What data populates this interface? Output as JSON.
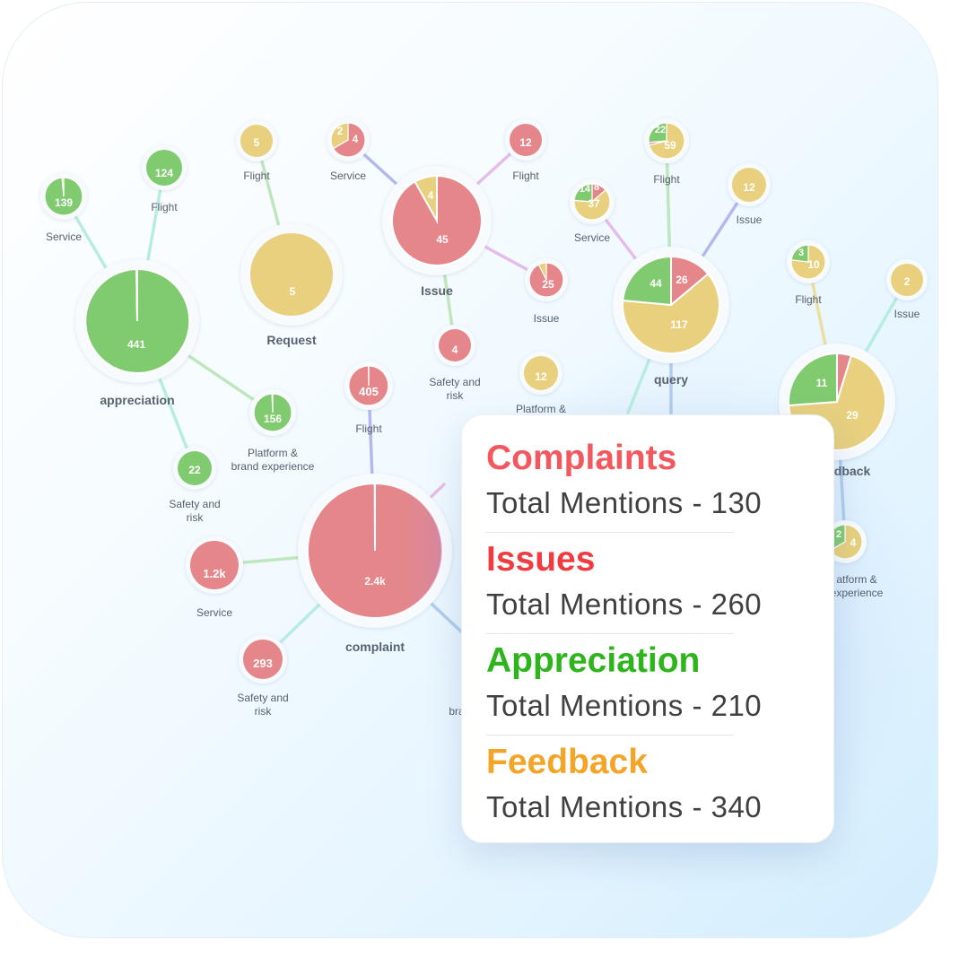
{
  "colors": {
    "green": "#80cb70",
    "red": "#e5878a",
    "yellow": "#e8d07e",
    "edges": [
      "#b7ede1",
      "#b0cdec",
      "#b3b9ef",
      "#e6bcea",
      "#bfe6bd",
      "#ecde9f"
    ]
  },
  "groups": [
    {
      "name": "appreciation",
      "value_label": "441",
      "segments": [
        {
          "color": "green",
          "value": 440
        },
        {
          "color": "yellow",
          "value": 1
        }
      ]
    },
    {
      "name": "Request",
      "value_label": "5",
      "segments": [
        {
          "color": "yellow",
          "value": 5
        }
      ]
    },
    {
      "name": "Issue",
      "value_labels": [
        "4",
        "45"
      ],
      "segments": [
        {
          "color": "red",
          "value": 45
        },
        {
          "color": "yellow",
          "value": 4
        }
      ]
    },
    {
      "name": "query",
      "value_labels": [
        "44",
        "26",
        "117"
      ],
      "segments": [
        {
          "color": "red",
          "value": 26
        },
        {
          "color": "yellow",
          "value": 117
        },
        {
          "color": "green",
          "value": 44
        }
      ]
    },
    {
      "name": "dback",
      "value_labels": [
        "11",
        "29"
      ],
      "segments": [
        {
          "color": "red",
          "value": 2
        },
        {
          "color": "yellow",
          "value": 29
        },
        {
          "color": "green",
          "value": 11
        }
      ]
    },
    {
      "name": "complaint",
      "value_label": "2.4k",
      "segments": [
        {
          "color": "red",
          "value": 2399
        },
        {
          "color": "yellow",
          "value": 1
        }
      ]
    }
  ],
  "leaves": [
    {
      "label": "Service",
      "value_label": "139"
    },
    {
      "label": "Flight",
      "value_label": "124"
    },
    {
      "label": "Platform & brand experience",
      "value_label": "156"
    },
    {
      "label": "Safety and risk",
      "value_label": "22"
    },
    {
      "label": "Flight",
      "value_label": "5"
    },
    {
      "label": "Service",
      "value_labels": [
        "2",
        "4"
      ]
    },
    {
      "label": "Flight",
      "value_label": "12"
    },
    {
      "label": "Issue",
      "value_label": "25"
    },
    {
      "label": "Safety and risk",
      "value_label": "4"
    },
    {
      "label": "Platform &",
      "value_label": "12"
    },
    {
      "label": "Flight",
      "value_labels": [
        "22",
        "59"
      ]
    },
    {
      "label": "Service",
      "value_labels": [
        "14",
        "8",
        "37"
      ]
    },
    {
      "label": "Issue",
      "value_label": "12"
    },
    {
      "label": "Flight",
      "value_labels": [
        "3",
        "10"
      ]
    },
    {
      "label": "Issue",
      "value_label": "2"
    },
    {
      "label": "atform & experience",
      "value_labels": [
        "2",
        "4"
      ]
    },
    {
      "label": "Flight",
      "value_label": "405"
    },
    {
      "label": "Service",
      "value_label": "1.2k"
    },
    {
      "label": "Safety and risk",
      "value_label": "293"
    },
    {
      "label": "bra"
    }
  ],
  "summary": {
    "items": [
      {
        "title": "Complaints",
        "title_color": "#f2585e",
        "total": "Total Mentions - 130"
      },
      {
        "title": "Issues",
        "title_color": "#f03c40",
        "total": "Total Mentions - 260"
      },
      {
        "title": "Appreciation",
        "title_color": "#2db51b",
        "total": "Total Mentions - 210"
      },
      {
        "title": "Feedback",
        "title_color": "#f2a526",
        "total": "Total Mentions - 340"
      }
    ]
  }
}
